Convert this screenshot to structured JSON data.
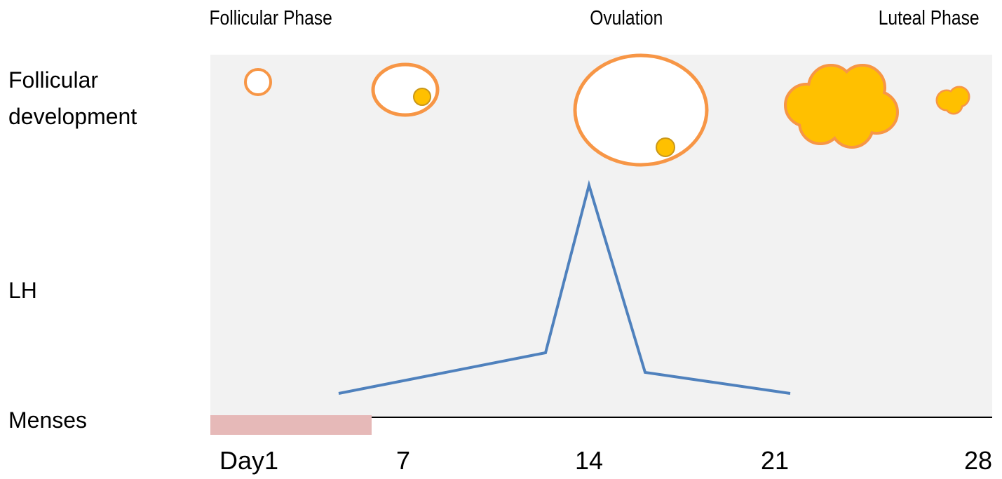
{
  "header": {
    "phases": [
      "Follicular Phase",
      "Ovulation",
      "Luteal Phase"
    ]
  },
  "rows": [
    "Follicular development",
    "LH",
    "Menses"
  ],
  "days": [
    "Day1",
    "7",
    "14",
    "21",
    "28"
  ]
}
